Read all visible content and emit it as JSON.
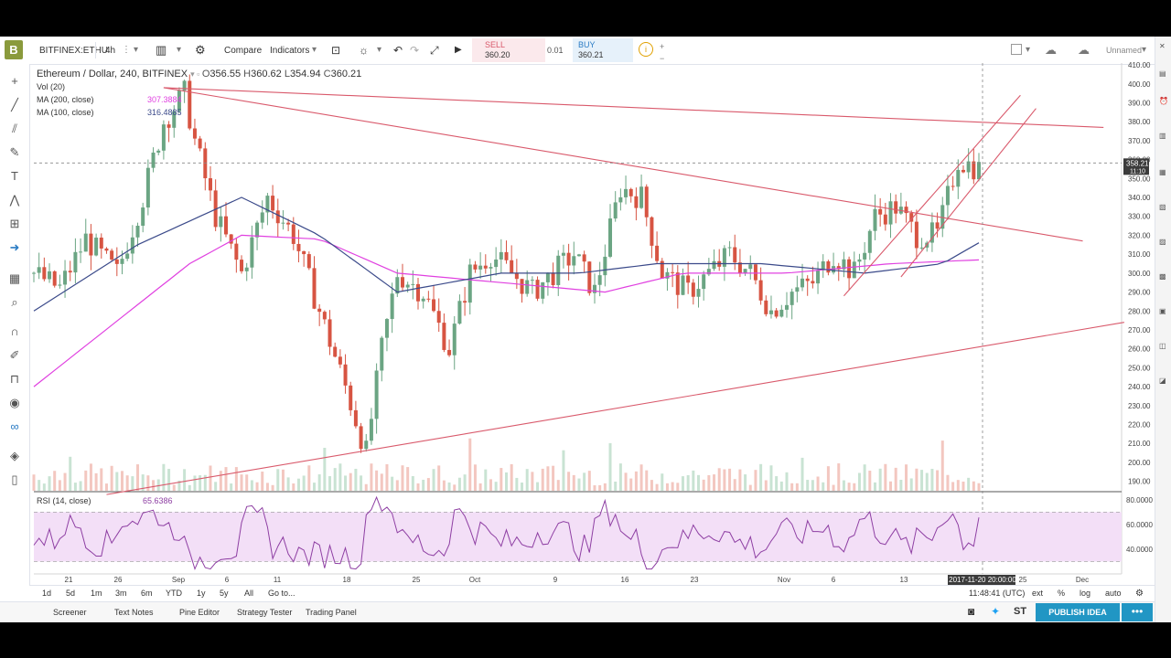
{
  "toolbar": {
    "logo": "B",
    "symbol": "BITFINEX:ETHU",
    "interval": "4h",
    "compare_label": "Compare",
    "indicators_label": "Indicators",
    "sell_label": "SELL",
    "sell_price": "360.20",
    "spread": "0.01",
    "buy_label": "BUY",
    "buy_price": "360.21",
    "layout_name": "Unnamed"
  },
  "legend": {
    "title": "Ethereum / Dollar, 240, BITFINEX",
    "o_label": "O",
    "o": "356.55",
    "h_label": "H",
    "h": "360.62",
    "l_label": "L",
    "l": "354.94",
    "c_label": "C",
    "c": "360.21",
    "vol": "Vol (20)",
    "ma200": "MA (200, close)",
    "ma200_val": "307.3884",
    "ma100": "MA (100, close)",
    "ma100_val": "316.4885",
    "rsi": "RSI (14, close)",
    "rsi_val": "65.6386"
  },
  "chart_data": {
    "type": "candlestick",
    "title": "Ethereum / Dollar, 240, BITFINEX",
    "y_axis_labels": [
      "410.00",
      "400.00",
      "390.00",
      "380.00",
      "370.00",
      "360.00",
      "350.00",
      "340.00",
      "330.00",
      "320.00",
      "310.00",
      "300.00",
      "290.00",
      "280.00",
      "270.00",
      "260.00",
      "250.00",
      "240.00",
      "230.00",
      "220.00",
      "210.00",
      "200.00",
      "190.00"
    ],
    "ylim": [
      185,
      411
    ],
    "y_log": false,
    "x_tick_labels": [
      "21",
      "26",
      "Sep",
      "6",
      "11",
      "18",
      "25",
      "Oct",
      "9",
      "16",
      "23",
      "Nov",
      "6",
      "13",
      "25",
      "Dec"
    ],
    "price_keypoints": [
      [
        0,
        300
      ],
      [
        5,
        292
      ],
      [
        10,
        318
      ],
      [
        16,
        300
      ],
      [
        21,
        340
      ],
      [
        25,
        380
      ],
      [
        29,
        395
      ],
      [
        31,
        370
      ],
      [
        35,
        330
      ],
      [
        40,
        300
      ],
      [
        45,
        340
      ],
      [
        50,
        320
      ],
      [
        55,
        280
      ],
      [
        60,
        240
      ],
      [
        64,
        205
      ],
      [
        67,
        260
      ],
      [
        70,
        300
      ],
      [
        75,
        290
      ],
      [
        80,
        260
      ],
      [
        84,
        300
      ],
      [
        88,
        310
      ],
      [
        92,
        300
      ],
      [
        96,
        290
      ],
      [
        100,
        300
      ],
      [
        104,
        310
      ],
      [
        108,
        290
      ],
      [
        113,
        345
      ],
      [
        117,
        340
      ],
      [
        121,
        300
      ],
      [
        126,
        290
      ],
      [
        130,
        300
      ],
      [
        134,
        310
      ],
      [
        138,
        300
      ],
      [
        142,
        280
      ],
      [
        146,
        290
      ],
      [
        150,
        295
      ],
      [
        154,
        310
      ],
      [
        158,
        300
      ],
      [
        162,
        330
      ],
      [
        166,
        335
      ],
      [
        170,
        320
      ],
      [
        174,
        320
      ],
      [
        178,
        360
      ],
      [
        182,
        355
      ]
    ],
    "ma200_keypoints": [
      [
        0,
        240
      ],
      [
        30,
        305
      ],
      [
        40,
        320
      ],
      [
        55,
        318
      ],
      [
        70,
        300
      ],
      [
        90,
        295
      ],
      [
        110,
        290
      ],
      [
        125,
        300
      ],
      [
        145,
        300
      ],
      [
        165,
        305
      ],
      [
        182,
        307
      ]
    ],
    "ma100_keypoints": [
      [
        0,
        280
      ],
      [
        20,
        315
      ],
      [
        40,
        340
      ],
      [
        55,
        320
      ],
      [
        70,
        290
      ],
      [
        90,
        300
      ],
      [
        105,
        300
      ],
      [
        120,
        305
      ],
      [
        140,
        305
      ],
      [
        160,
        300
      ],
      [
        175,
        305
      ],
      [
        182,
        316
      ]
    ],
    "trendlines": [
      {
        "from": [
          25,
          398
        ],
        "to": [
          206,
          377
        ]
      },
      {
        "from": [
          25,
          398
        ],
        "to": [
          202,
          317
        ]
      },
      {
        "from": [
          14,
          183
        ],
        "to": [
          210,
          274
        ]
      },
      {
        "from": [
          156,
          288
        ],
        "to": [
          190,
          394
        ]
      },
      {
        "from": [
          167,
          298
        ],
        "to": [
          193,
          387
        ]
      }
    ],
    "rsi_axis_labels": [
      "80.0000",
      "60.0000",
      "40.0000"
    ],
    "rsi_ylim": [
      20,
      85
    ],
    "rsi_bands": [
      70,
      30
    ],
    "rsi_last": 65.6386,
    "crosshair_date": "2017-11-20 20:00:00",
    "price_badge": "358.21",
    "price_badge_sub": "11:10",
    "colors": {
      "up": "#6ba583",
      "down": "#d75442",
      "ma200": "#e040e0",
      "ma100": "#3b4a8a",
      "trend": "#d9596b",
      "rsi": "#8e3fa3",
      "rsi_band": "#f3dff7"
    }
  },
  "range_bar": {
    "items": [
      "1d",
      "5d",
      "1m",
      "3m",
      "6m",
      "YTD",
      "1y",
      "5y",
      "All"
    ],
    "goto": "Go to...",
    "time": "11:48:41 (UTC)",
    "ext": "ext",
    "pct": "%",
    "log": "log",
    "auto": "auto"
  },
  "bottom_bar": {
    "items": [
      "Screener",
      "Text Notes",
      "Pine Editor",
      "Strategy Tester",
      "Trading Panel"
    ],
    "publish": "PUBLISH IDEA",
    "more": "•••",
    "st": "ST"
  }
}
